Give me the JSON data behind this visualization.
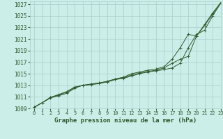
{
  "title": "Graphe pression niveau de la mer (hPa)",
  "bg_color": "#cceee8",
  "grid_color": "#aacccc",
  "line_color": "#2d5a2d",
  "xlim": [
    -0.5,
    23
  ],
  "ylim": [
    1009,
    1027.5
  ],
  "yticks": [
    1009,
    1011,
    1013,
    1015,
    1017,
    1019,
    1021,
    1023,
    1025,
    1027
  ],
  "xticks": [
    0,
    1,
    2,
    3,
    4,
    5,
    6,
    7,
    8,
    9,
    10,
    11,
    12,
    13,
    14,
    15,
    16,
    17,
    18,
    19,
    20,
    21,
    22,
    23
  ],
  "series1": [
    1009.2,
    1010.0,
    1010.8,
    1011.2,
    1011.6,
    1012.5,
    1013.0,
    1013.2,
    1013.4,
    1013.6,
    1014.0,
    1014.2,
    1014.6,
    1015.0,
    1015.3,
    1015.5,
    1015.7,
    1016.0,
    1016.8,
    1019.5,
    1021.8,
    1022.5,
    1025.0,
    1027.2
  ],
  "series2": [
    1009.2,
    1010.0,
    1010.9,
    1011.3,
    1011.8,
    1012.6,
    1013.0,
    1013.1,
    1013.3,
    1013.6,
    1014.0,
    1014.3,
    1014.8,
    1015.1,
    1015.4,
    1015.6,
    1016.0,
    1016.8,
    1017.5,
    1018.0,
    1021.5,
    1023.5,
    1025.5,
    1027.3
  ],
  "series3": [
    1009.2,
    1010.0,
    1010.9,
    1011.4,
    1011.9,
    1012.7,
    1013.0,
    1013.2,
    1013.4,
    1013.7,
    1014.1,
    1014.4,
    1015.0,
    1015.3,
    1015.6,
    1015.8,
    1016.2,
    1017.5,
    1019.5,
    1021.8,
    1021.5,
    1023.3,
    1025.3,
    1027.2
  ]
}
